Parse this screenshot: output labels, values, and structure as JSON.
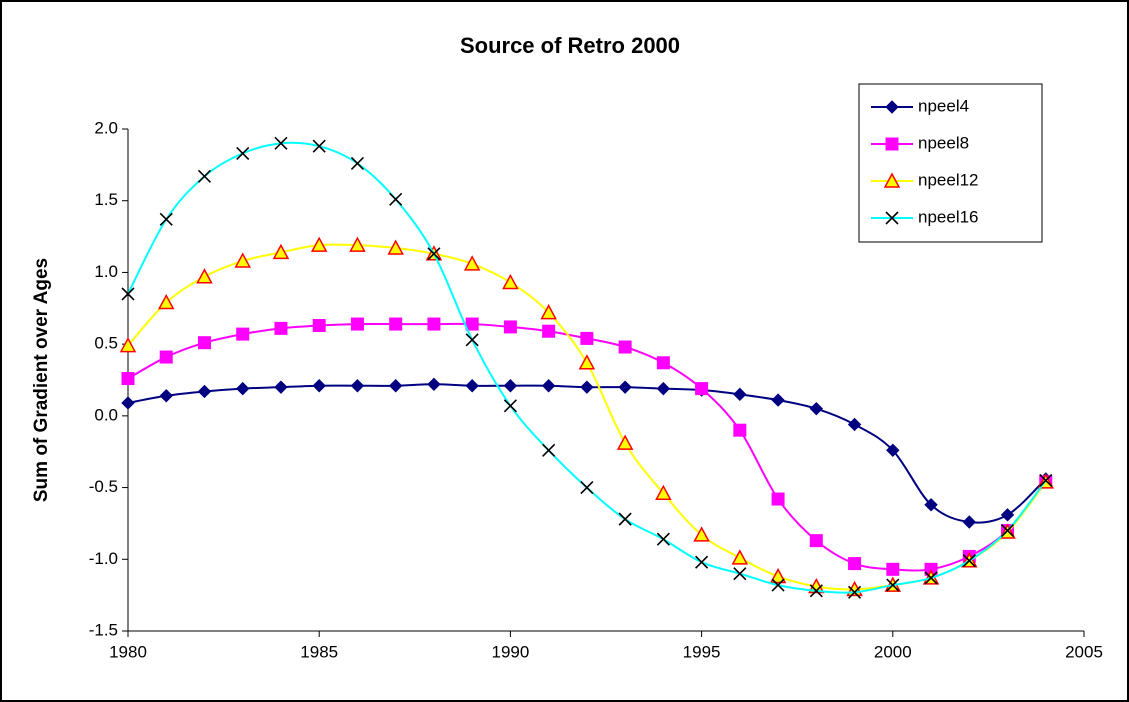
{
  "chart_data": {
    "type": "line",
    "title": "Source of Retro 2000",
    "y_label": "Sum of Gradient over Ages",
    "x": [
      1980,
      1981,
      1982,
      1983,
      1984,
      1985,
      1986,
      1987,
      1988,
      1989,
      1990,
      1991,
      1992,
      1993,
      1994,
      1995,
      1996,
      1997,
      1998,
      1999,
      2000,
      2001,
      2002,
      2003,
      2004
    ],
    "series": [
      {
        "name": "npeel4",
        "color": "#000080",
        "marker": "diamond",
        "values": [
          0.09,
          0.14,
          0.17,
          0.19,
          0.2,
          0.21,
          0.21,
          0.21,
          0.22,
          0.21,
          0.21,
          0.21,
          0.2,
          0.2,
          0.19,
          0.18,
          0.15,
          0.11,
          0.05,
          -0.06,
          -0.24,
          -0.62,
          -0.74,
          -0.69,
          -0.44
        ]
      },
      {
        "name": "npeel8",
        "color": "#ff00ff",
        "marker": "square",
        "values": [
          0.26,
          0.41,
          0.51,
          0.57,
          0.61,
          0.63,
          0.64,
          0.64,
          0.64,
          0.64,
          0.62,
          0.59,
          0.54,
          0.48,
          0.37,
          0.19,
          -0.1,
          -0.58,
          -0.87,
          -1.03,
          -1.07,
          -1.07,
          -0.98,
          -0.8,
          -0.46
        ]
      },
      {
        "name": "npeel12",
        "color": "#ffff00",
        "marker": "triangle",
        "values": [
          0.49,
          0.79,
          0.97,
          1.08,
          1.14,
          1.19,
          1.19,
          1.17,
          1.13,
          1.06,
          0.93,
          0.72,
          0.37,
          -0.19,
          -0.54,
          -0.83,
          -0.99,
          -1.12,
          -1.19,
          -1.21,
          -1.18,
          -1.13,
          -1.01,
          -0.81,
          -0.46
        ]
      },
      {
        "name": "npeel16",
        "color": "#00ffff",
        "marker": "x",
        "values": [
          0.85,
          1.37,
          1.67,
          1.83,
          1.9,
          1.88,
          1.76,
          1.51,
          1.13,
          0.53,
          0.07,
          -0.24,
          -0.5,
          -0.72,
          -0.86,
          -1.02,
          -1.1,
          -1.18,
          -1.22,
          -1.23,
          -1.18,
          -1.13,
          -1.01,
          -0.8,
          -0.45
        ]
      }
    ],
    "xlim": [
      1980,
      2005
    ],
    "xticks": [
      1980,
      1985,
      1990,
      1995,
      2000,
      2005
    ],
    "ylim": [
      -1.5,
      2.0
    ],
    "yticks": [
      -1.5,
      -0.5,
      0.5,
      1.5,
      {
        "value": 2.0,
        "label": "2.0"
      },
      {
        "value": 1.0,
        "label": "1.0"
      },
      {
        "value": 0.0,
        "label": "0.0"
      },
      {
        "value": -1.0,
        "label": "-1.0"
      }
    ],
    "legend": "upper-right"
  }
}
